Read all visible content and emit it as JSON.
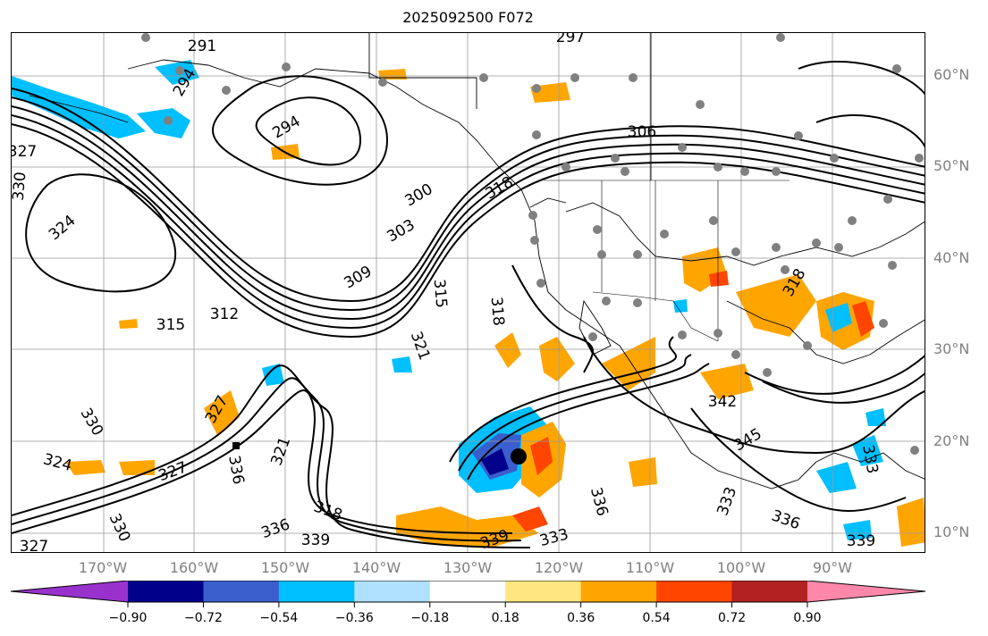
{
  "title": "2025092500 F072",
  "lat_labels": [
    {
      "text": "60°N",
      "lat": 60
    },
    {
      "text": "50°N",
      "lat": 50
    },
    {
      "text": "40°N",
      "lat": 40
    },
    {
      "text": "30°N",
      "lat": 30
    },
    {
      "text": "20°N",
      "lat": 20
    },
    {
      "text": "10°N",
      "lat": 10
    }
  ],
  "lon_labels": [
    {
      "text": "170°W",
      "lon": -170
    },
    {
      "text": "160°W",
      "lon": -160
    },
    {
      "text": "150°W",
      "lon": -150
    },
    {
      "text": "140°W",
      "lon": -140
    },
    {
      "text": "130°W",
      "lon": -130
    },
    {
      "text": "120°W",
      "lon": -120
    },
    {
      "text": "110°W",
      "lon": -110
    },
    {
      "text": "100°W",
      "lon": -100
    },
    {
      "text": "90°W",
      "lon": -90
    }
  ],
  "colorbar": {
    "colors": [
      "#9932cc",
      "#00008b",
      "#3a5fcd",
      "#00bfff",
      "#b0e0ff",
      "#ffffff",
      "#ffe680",
      "#ffa500",
      "#ff4500",
      "#b22222",
      "#ff88aa"
    ],
    "tick_labels": [
      "−0.90",
      "−0.72",
      "−0.54",
      "−0.36",
      "−0.18",
      "0.18",
      "0.36",
      "0.54",
      "0.72",
      "0.90"
    ]
  },
  "contour_labels": [
    {
      "text": "291"
    },
    {
      "text": "297"
    },
    {
      "text": "294"
    },
    {
      "text": "294"
    },
    {
      "text": "327"
    },
    {
      "text": "330"
    },
    {
      "text": "324"
    },
    {
      "text": "306"
    },
    {
      "text": "300"
    },
    {
      "text": "303"
    },
    {
      "text": "318"
    },
    {
      "text": "309"
    },
    {
      "text": "315"
    },
    {
      "text": "312"
    },
    {
      "text": "315"
    },
    {
      "text": "318"
    },
    {
      "text": "321"
    },
    {
      "text": "330"
    },
    {
      "text": "324"
    },
    {
      "text": "327"
    },
    {
      "text": "336"
    },
    {
      "text": "321"
    },
    {
      "text": "327"
    },
    {
      "text": "342"
    },
    {
      "text": "345"
    },
    {
      "text": "333"
    },
    {
      "text": "336"
    },
    {
      "text": "339"
    },
    {
      "text": "318"
    },
    {
      "text": "336"
    },
    {
      "text": "339"
    },
    {
      "text": "339"
    },
    {
      "text": "333"
    },
    {
      "text": "336"
    },
    {
      "text": "330"
    },
    {
      "text": "327"
    },
    {
      "text": "318"
    },
    {
      "text": "333"
    }
  ]
}
